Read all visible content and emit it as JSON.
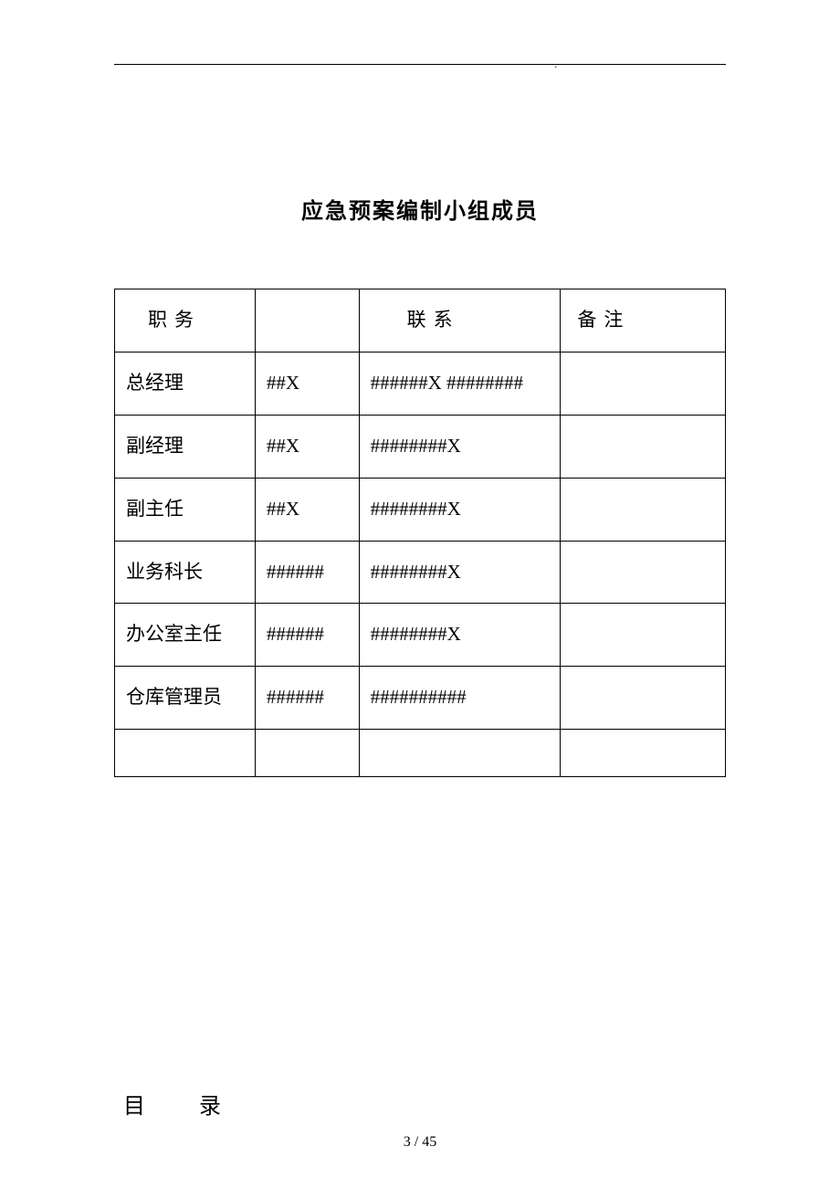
{
  "document": {
    "title": "应急预案编制小组成员",
    "toc_heading_part1": "目",
    "toc_heading_part2": "录",
    "page_number": "3 / 45",
    "background_color": "#ffffff",
    "text_color": "#000000",
    "border_color": "#000000",
    "title_fontsize": 24,
    "body_fontsize": 21,
    "page_number_fontsize": 16
  },
  "table": {
    "columns": [
      "职务",
      "",
      "联系",
      "备注"
    ],
    "column_widths_pct": [
      23,
      17,
      33,
      27
    ],
    "rows": [
      {
        "position": "总经理",
        "name": "##X",
        "contact": "######X ########",
        "remark": ""
      },
      {
        "position": "副经理",
        "name": "##X",
        "contact": "########X",
        "remark": ""
      },
      {
        "position": "副主任",
        "name": "##X",
        "contact": "########X",
        "remark": ""
      },
      {
        "position": "业务科长",
        "name": "######",
        "contact": "########X",
        "remark": ""
      },
      {
        "position": "办公室主任",
        "name": "######",
        "contact": "########X",
        "remark": ""
      },
      {
        "position": "仓库管理员",
        "name": "######",
        "contact": "##########",
        "remark": ""
      },
      {
        "position": "",
        "name": "",
        "contact": "",
        "remark": ""
      }
    ]
  }
}
